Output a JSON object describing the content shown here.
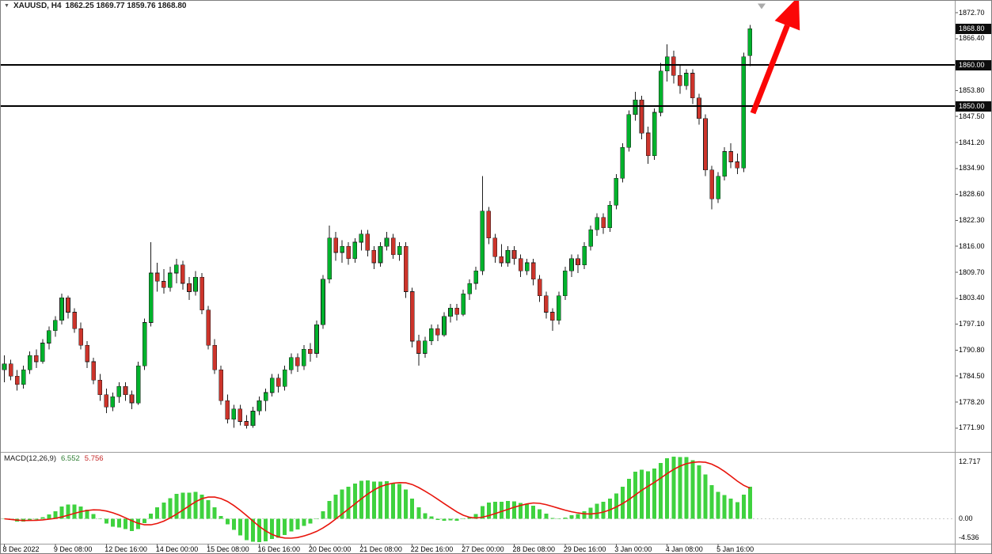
{
  "header": {
    "symbol_period": "XAUUSD, H4",
    "ohlc": "1862.25 1869.77 1859.76 1868.80"
  },
  "price_axis": {
    "current_price_label": "1868.80",
    "ticks": [
      "1872.70",
      "1866.40",
      "1860.10",
      "1853.80",
      "1847.50",
      "1841.20",
      "1834.90",
      "1828.60",
      "1822.30",
      "1816.00",
      "1809.70",
      "1803.40",
      "1797.10",
      "1790.80",
      "1784.50",
      "1778.20",
      "1771.90"
    ]
  },
  "hlines": [
    {
      "label": "1860.00",
      "price": 1860.0
    },
    {
      "label": "1850.00",
      "price": 1850.0
    }
  ],
  "macd": {
    "title": "MACD(12,26,9)",
    "value_main": "6.552",
    "value_signal": "5.756",
    "axis_labels": [
      "12.717",
      "0.00",
      "-4.536"
    ]
  },
  "colors": {
    "bull": "#00B22C",
    "bear": "#CC342B",
    "outline": "#1c1c1c",
    "hline": "#000000",
    "macd_hist": "#3FD23F",
    "macd_signal": "#E8150C",
    "macd_value_main": "#2e7d32",
    "macd_value_signal": "#c62828",
    "arrow": "#FB0707"
  },
  "chart_data": {
    "type": "candlestick",
    "title": "XAUUSD, H4",
    "symbol": "XAUUSD",
    "timeframe": "H4",
    "ohlc_display": {
      "open": "1862.25",
      "high": "1869.77",
      "low": "1859.76",
      "close": "1868.80"
    },
    "y_axis": {
      "top_tick": 1872.7,
      "tick_step": 6.3,
      "tick_count": 17,
      "grid": false
    },
    "horizontal_lines": [
      1860.0,
      1850.0
    ],
    "candles_per_x_tick": 8,
    "x_tick_labels": [
      "8 Dec 2022",
      "9 Dec 08:00",
      "12 Dec 16:00",
      "14 Dec 00:00",
      "15 Dec 08:00",
      "16 Dec 16:00",
      "20 Dec 00:00",
      "21 Dec 08:00",
      "22 Dec 16:00",
      "27 Dec 00:00",
      "28 Dec 08:00",
      "29 Dec 16:00",
      "3 Jan 00:00",
      "4 Jan 08:00",
      "5 Jan 16:00"
    ],
    "candles": [
      [
        1786,
        1789.5,
        1783,
        1787.5
      ],
      [
        1787.5,
        1788.5,
        1783.5,
        1784.5
      ],
      [
        1784.5,
        1786,
        1781,
        1782.5
      ],
      [
        1782.5,
        1787,
        1781.5,
        1786
      ],
      [
        1786,
        1790.5,
        1785,
        1789.5
      ],
      [
        1789.5,
        1791,
        1786.5,
        1788
      ],
      [
        1788,
        1793.5,
        1787.5,
        1792.5
      ],
      [
        1792.5,
        1796.5,
        1791,
        1795.5
      ],
      [
        1795.5,
        1799,
        1794,
        1798
      ],
      [
        1798,
        1804.5,
        1797,
        1803.5
      ],
      [
        1803.5,
        1804,
        1798.5,
        1800
      ],
      [
        1800,
        1801,
        1795,
        1796
      ],
      [
        1796,
        1797.5,
        1791,
        1792
      ],
      [
        1792,
        1793,
        1786.5,
        1788
      ],
      [
        1788,
        1789,
        1782.5,
        1783.5
      ],
      [
        1783.5,
        1785,
        1778.5,
        1780
      ],
      [
        1780,
        1781.5,
        1775.5,
        1777
      ],
      [
        1777,
        1780.5,
        1776,
        1779.5
      ],
      [
        1779.5,
        1783,
        1778,
        1782
      ],
      [
        1782,
        1783,
        1778.5,
        1780
      ],
      [
        1780,
        1781,
        1776.5,
        1778
      ],
      [
        1778,
        1788,
        1777.5,
        1787
      ],
      [
        1787,
        1798.5,
        1786,
        1797.5
      ],
      [
        1797.5,
        1817,
        1796.5,
        1809.5
      ],
      [
        1809.5,
        1812,
        1805,
        1807.5
      ],
      [
        1807.5,
        1810.5,
        1804.5,
        1806
      ],
      [
        1806,
        1811,
        1805,
        1809.5
      ],
      [
        1809.5,
        1813,
        1807,
        1811.5
      ],
      [
        1811.5,
        1812.5,
        1805.5,
        1807
      ],
      [
        1807,
        1808.5,
        1803,
        1805
      ],
      [
        1805,
        1810,
        1804,
        1808.5
      ],
      [
        1808.5,
        1809.5,
        1799.5,
        1800.5
      ],
      [
        1800.5,
        1801.5,
        1791,
        1792
      ],
      [
        1792,
        1793.5,
        1785,
        1786
      ],
      [
        1786,
        1787,
        1777.5,
        1778.5
      ],
      [
        1778.5,
        1780,
        1773,
        1774
      ],
      [
        1774,
        1777.5,
        1772,
        1776.5
      ],
      [
        1776.5,
        1777.5,
        1772.5,
        1773.5
      ],
      [
        1773.5,
        1775,
        1771.8,
        1772.5
      ],
      [
        1772.5,
        1777,
        1772,
        1776
      ],
      [
        1776,
        1779.5,
        1775,
        1778.5
      ],
      [
        1778.5,
        1781.5,
        1776,
        1780.5
      ],
      [
        1780.5,
        1785,
        1779.5,
        1784
      ],
      [
        1784,
        1785,
        1780.5,
        1782
      ],
      [
        1782,
        1787,
        1781,
        1786
      ],
      [
        1786,
        1790,
        1785,
        1789
      ],
      [
        1789,
        1790,
        1785.5,
        1787
      ],
      [
        1787,
        1792,
        1786,
        1791
      ],
      [
        1791,
        1792.5,
        1788,
        1790
      ],
      [
        1790,
        1798,
        1789,
        1797
      ],
      [
        1797,
        1809,
        1796,
        1808
      ],
      [
        1808,
        1821,
        1807,
        1818
      ],
      [
        1818,
        1819.5,
        1812.5,
        1814.5
      ],
      [
        1814.5,
        1817.5,
        1812,
        1816
      ],
      [
        1816,
        1817,
        1811.5,
        1813
      ],
      [
        1813,
        1818,
        1812,
        1817
      ],
      [
        1817,
        1820,
        1815,
        1819
      ],
      [
        1819,
        1820,
        1813.5,
        1815
      ],
      [
        1815,
        1816,
        1810.5,
        1812
      ],
      [
        1812,
        1817,
        1811,
        1816
      ],
      [
        1816,
        1819.5,
        1815,
        1818
      ],
      [
        1818,
        1819,
        1813,
        1814
      ],
      [
        1814,
        1817,
        1812.5,
        1816
      ],
      [
        1816,
        1817,
        1803.5,
        1805
      ],
      [
        1805,
        1806,
        1791.5,
        1793
      ],
      [
        1793,
        1794.5,
        1787,
        1790
      ],
      [
        1790,
        1794,
        1789,
        1793
      ],
      [
        1793,
        1797,
        1792,
        1796
      ],
      [
        1796,
        1797,
        1793,
        1794.5
      ],
      [
        1794.5,
        1800,
        1794,
        1799
      ],
      [
        1799,
        1802,
        1797.5,
        1801
      ],
      [
        1801,
        1802,
        1798,
        1799.5
      ],
      [
        1799.5,
        1805.5,
        1799,
        1804.5
      ],
      [
        1804.5,
        1808,
        1803,
        1807
      ],
      [
        1807,
        1811,
        1805.5,
        1810
      ],
      [
        1810,
        1833,
        1809,
        1824.5
      ],
      [
        1824.5,
        1825.5,
        1816.5,
        1818
      ],
      [
        1818,
        1819,
        1812,
        1813.5
      ],
      [
        1813.5,
        1816.5,
        1811,
        1812
      ],
      [
        1812,
        1816,
        1811,
        1815
      ],
      [
        1815,
        1816,
        1811.5,
        1813
      ],
      [
        1813,
        1814,
        1808.5,
        1810
      ],
      [
        1810,
        1813,
        1809,
        1812
      ],
      [
        1812,
        1813,
        1806.5,
        1808
      ],
      [
        1808,
        1809,
        1802.5,
        1804
      ],
      [
        1804,
        1805,
        1798.5,
        1800
      ],
      [
        1800,
        1801,
        1795.5,
        1798
      ],
      [
        1798,
        1805,
        1797,
        1804
      ],
      [
        1804,
        1811,
        1803,
        1810
      ],
      [
        1810,
        1814,
        1808.5,
        1813
      ],
      [
        1813,
        1814,
        1809.5,
        1811.5
      ],
      [
        1811.5,
        1817,
        1810.5,
        1816
      ],
      [
        1816,
        1821,
        1815,
        1820
      ],
      [
        1820,
        1824,
        1818.5,
        1823
      ],
      [
        1823,
        1824,
        1819,
        1820.5
      ],
      [
        1820.5,
        1827,
        1819.5,
        1826
      ],
      [
        1826,
        1833.5,
        1825,
        1832.5
      ],
      [
        1832.5,
        1841,
        1831.5,
        1840
      ],
      [
        1840,
        1849,
        1839,
        1848
      ],
      [
        1848,
        1853.5,
        1846.5,
        1851.5
      ],
      [
        1851.5,
        1852.5,
        1842,
        1843.5
      ],
      [
        1843.5,
        1845,
        1836,
        1838
      ],
      [
        1838,
        1849.5,
        1837,
        1848.5
      ],
      [
        1848.5,
        1860.5,
        1847.5,
        1858.5
      ],
      [
        1858.5,
        1865,
        1856,
        1862
      ],
      [
        1862,
        1863.5,
        1855.5,
        1857.5
      ],
      [
        1857.5,
        1860,
        1853,
        1855
      ],
      [
        1855,
        1859,
        1854,
        1858
      ],
      [
        1858,
        1859,
        1850.5,
        1852
      ],
      [
        1852,
        1853,
        1845.5,
        1847
      ],
      [
        1847,
        1848,
        1833,
        1834.5
      ],
      [
        1834.5,
        1835.5,
        1825,
        1827.5
      ],
      [
        1827.5,
        1834,
        1826.5,
        1833
      ],
      [
        1833,
        1840,
        1832,
        1839
      ],
      [
        1839,
        1841,
        1835,
        1836.5
      ],
      [
        1836.5,
        1838.5,
        1833.5,
        1835
      ],
      [
        1835,
        1863,
        1834,
        1862
      ],
      [
        1862.25,
        1869.77,
        1859.76,
        1868.8
      ]
    ],
    "indicator": {
      "name": "MACD",
      "params": "12,26,9",
      "main_value": "6.552",
      "signal_value": "5.756",
      "axis_labels": [
        "12.717",
        "0.00",
        "-4.536"
      ],
      "histogram_color_name": "green",
      "signal_color_name": "red"
    },
    "annotations": [
      {
        "type": "arrow",
        "direction": "up",
        "color": "#FB0707",
        "position": "from 1850.00 line near last candle to top-right"
      }
    ]
  }
}
